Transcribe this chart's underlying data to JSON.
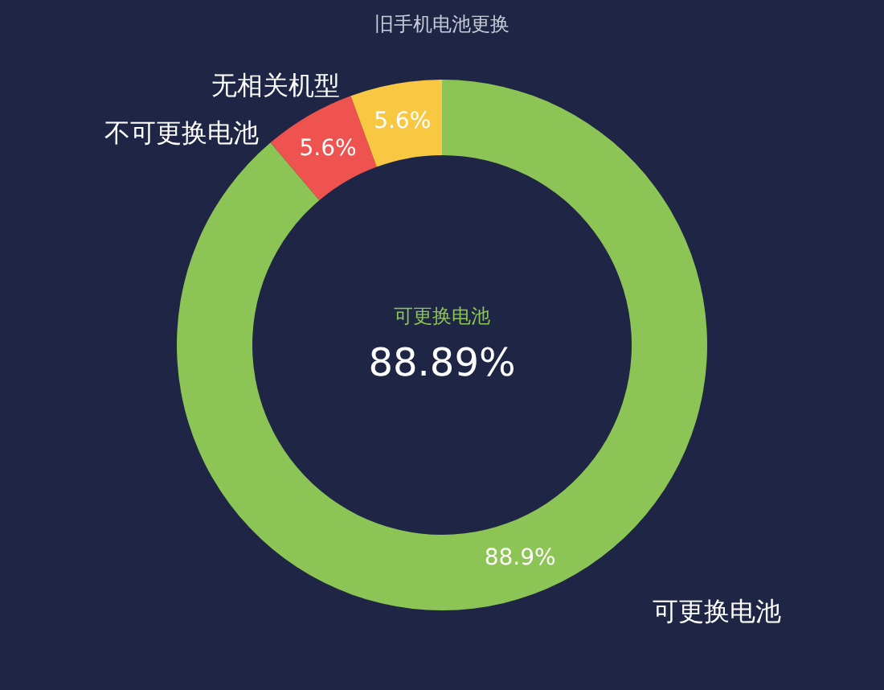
{
  "chart_data": {
    "type": "donut",
    "title": "旧手机电池更换",
    "categories": [
      "可更换电池",
      "不可更换电池",
      "无相关机型"
    ],
    "values": [
      88.9,
      5.6,
      5.6
    ],
    "colors": [
      "#8dc456",
      "#ee5350",
      "#f8c843"
    ],
    "value_labels": [
      "88.9%",
      "5.6%",
      "5.6%"
    ],
    "annotations": [
      "可更换电池",
      "88.89%"
    ]
  }
}
